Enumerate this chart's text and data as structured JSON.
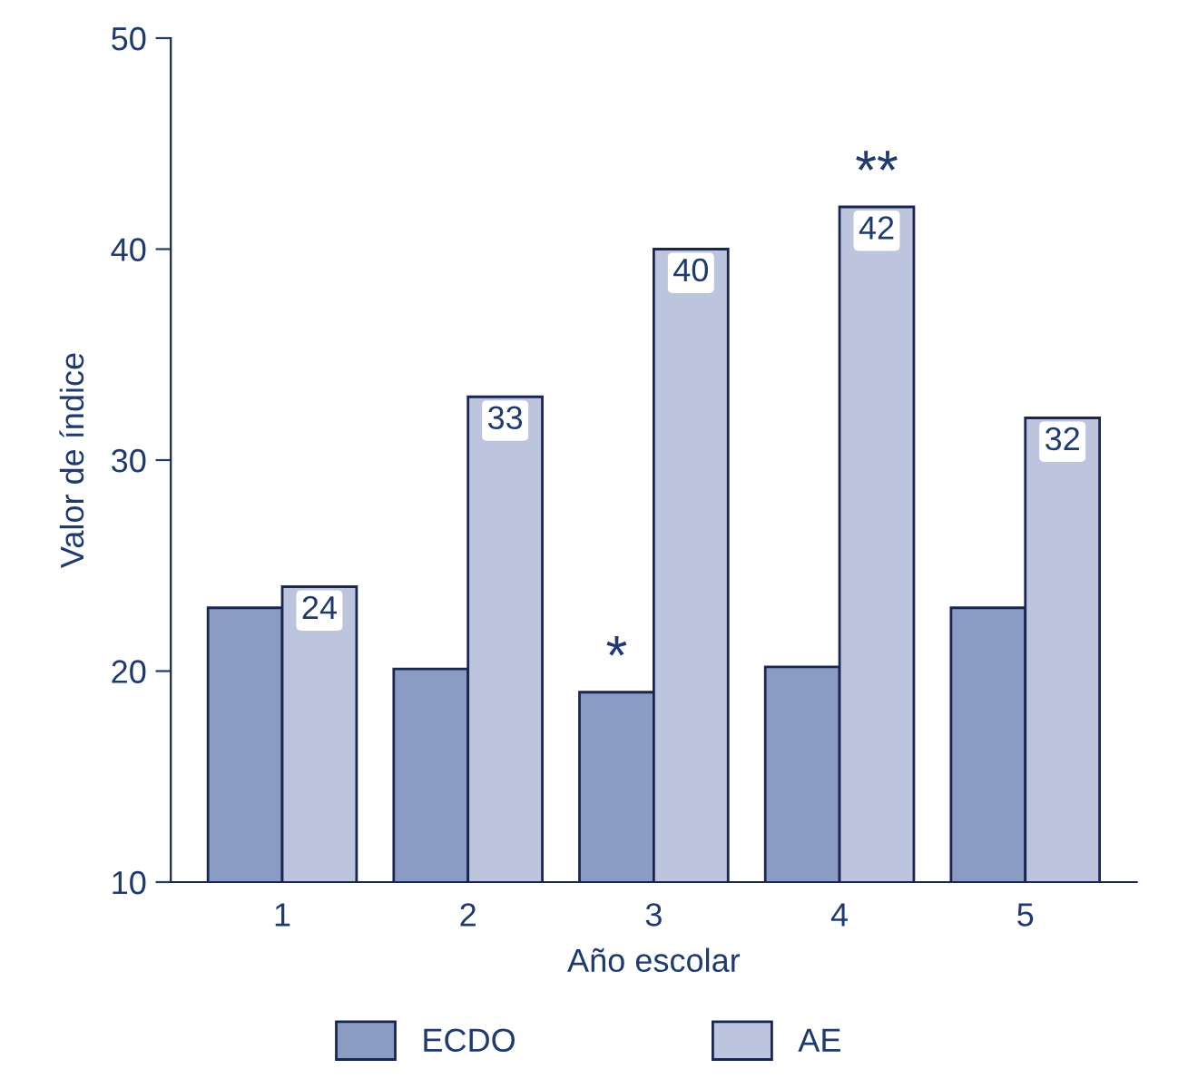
{
  "chart_data": {
    "type": "bar",
    "xlabel": "Año escolar",
    "ylabel": "Valor de índice",
    "categories": [
      "1",
      "2",
      "3",
      "4",
      "5"
    ],
    "series": [
      {
        "name": "ECDO",
        "color": "#8a9cc4",
        "values": [
          23,
          20.1,
          19,
          20.2,
          23
        ]
      },
      {
        "name": "AE",
        "color": "#bcc4de",
        "values": [
          24,
          33,
          40,
          42,
          32
        ],
        "value_labels": [
          "24",
          "33",
          "40",
          "42",
          "32"
        ]
      }
    ],
    "ylim": [
      10,
      50
    ],
    "yticks": [
      10,
      20,
      30,
      40,
      50
    ],
    "grid": false,
    "legend": "bottom",
    "annotations": [
      {
        "text": "*",
        "x": "3",
        "y": 19
      },
      {
        "text": "**",
        "x": "4",
        "y": 42
      }
    ]
  }
}
